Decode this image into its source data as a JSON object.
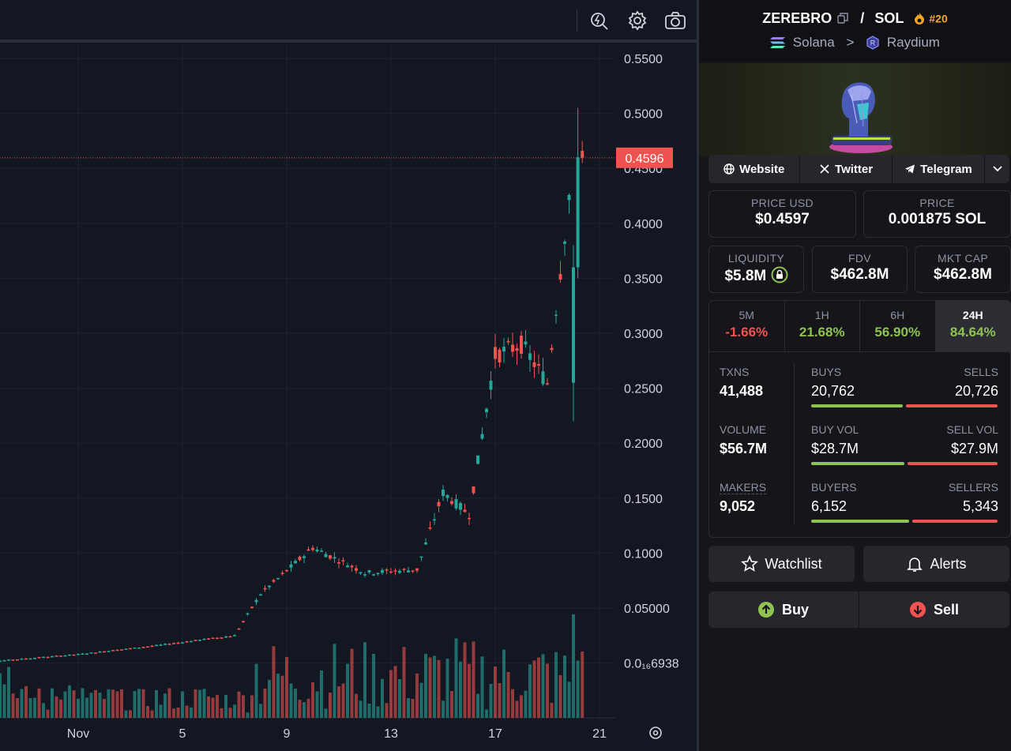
{
  "toolbar": {
    "icons": [
      "indicator-lightning-icon",
      "settings-gear-icon",
      "camera-screenshot-icon"
    ]
  },
  "chart_data": {
    "type": "candlestick",
    "current_price_label": "0.4596",
    "y_ticks": [
      "0.5500",
      "0.5000",
      "0.4500",
      "0.4000",
      "0.3500",
      "0.3000",
      "0.2500",
      "0.2000",
      "0.1500",
      "0.1000",
      "0.05000",
      "0.0₁₆6938"
    ],
    "x_ticks": [
      "Nov",
      "5",
      "9",
      "13",
      "17",
      "21"
    ],
    "colors": {
      "up": "#26a69a",
      "down": "#ef5350",
      "price_line": "#ef5350"
    },
    "ohlc_daily_approx": [
      {
        "day": "Oct 29",
        "open": 0.0002,
        "high": 0.0005,
        "low": 0.0001,
        "close": 0.0002
      },
      {
        "day": "Nov 1",
        "open": 0.007,
        "high": 0.012,
        "low": 0.005,
        "close": 0.008
      },
      {
        "day": "Nov 4",
        "open": 0.012,
        "high": 0.018,
        "low": 0.01,
        "close": 0.016
      },
      {
        "day": "Nov 7",
        "open": 0.022,
        "high": 0.029,
        "low": 0.018,
        "close": 0.025
      },
      {
        "day": "Nov 8",
        "open": 0.025,
        "high": 0.068,
        "low": 0.024,
        "close": 0.063
      },
      {
        "day": "Nov 10",
        "open": 0.08,
        "high": 0.13,
        "low": 0.075,
        "close": 0.105
      },
      {
        "day": "Nov 12",
        "open": 0.085,
        "high": 0.11,
        "low": 0.072,
        "close": 0.082
      },
      {
        "day": "Nov 14",
        "open": 0.075,
        "high": 0.09,
        "low": 0.062,
        "close": 0.085
      },
      {
        "day": "Nov 15",
        "open": 0.085,
        "high": 0.18,
        "low": 0.08,
        "close": 0.155
      },
      {
        "day": "Nov 16",
        "open": 0.155,
        "high": 0.165,
        "low": 0.115,
        "close": 0.135
      },
      {
        "day": "Nov 17",
        "open": 0.135,
        "high": 0.3,
        "low": 0.13,
        "close": 0.28
      },
      {
        "day": "Nov 18",
        "open": 0.28,
        "high": 0.355,
        "low": 0.24,
        "close": 0.29
      },
      {
        "day": "Nov 19",
        "open": 0.29,
        "high": 0.32,
        "low": 0.22,
        "close": 0.255
      },
      {
        "day": "Nov 20",
        "open": 0.255,
        "high": 0.505,
        "low": 0.22,
        "close": 0.4596
      }
    ]
  },
  "pair": {
    "base": "ZEREBRO",
    "sep": "/",
    "quote": "SOL",
    "rank": "#20",
    "chain": "Solana",
    "chevron": ">",
    "dex": "Raydium"
  },
  "links": {
    "website": "Website",
    "twitter": "Twitter",
    "telegram": "Telegram"
  },
  "prices": {
    "usd_label": "PRICE USD",
    "usd_value": "$0.4597",
    "native_label": "PRICE",
    "native_value": "0.001875 SOL"
  },
  "metrics": {
    "liquidity_label": "LIQUIDITY",
    "liquidity_value": "$5.8M",
    "fdv_label": "FDV",
    "fdv_value": "$462.8M",
    "mcap_label": "MKT CAP",
    "mcap_value": "$462.8M"
  },
  "timeframes": [
    {
      "label": "5M",
      "value": "-1.66%",
      "color": "#ef5350"
    },
    {
      "label": "1H",
      "value": "21.68%",
      "color": "#8fc351"
    },
    {
      "label": "6H",
      "value": "56.90%",
      "color": "#8fc351"
    },
    {
      "label": "24H",
      "value": "84.64%",
      "color": "#8fc351"
    }
  ],
  "txns": {
    "txns_label": "TXNS",
    "txns_value": "41,488",
    "buys_label": "BUYS",
    "buys_value": "20,762",
    "sells_label": "SELLS",
    "sells_value": "20,726",
    "buys_share": 0.5004,
    "volume_label": "VOLUME",
    "volume_value": "$56.7M",
    "buyvol_label": "BUY VOL",
    "buyvol_value": "$28.7M",
    "sellvol_label": "SELL VOL",
    "sellvol_value": "$27.9M",
    "buyvol_share": 0.507,
    "makers_label": "MAKERS",
    "makers_value": "9,052",
    "buyers_label": "BUYERS",
    "buyers_value": "6,152",
    "sellers_label": "SELLERS",
    "sellers_value": "5,343",
    "buyers_share": 0.535,
    "buy_color": "#8fc351",
    "sell_color": "#ef5350"
  },
  "actions": {
    "watchlist": "Watchlist",
    "alerts": "Alerts",
    "buy": "Buy",
    "sell": "Sell"
  }
}
